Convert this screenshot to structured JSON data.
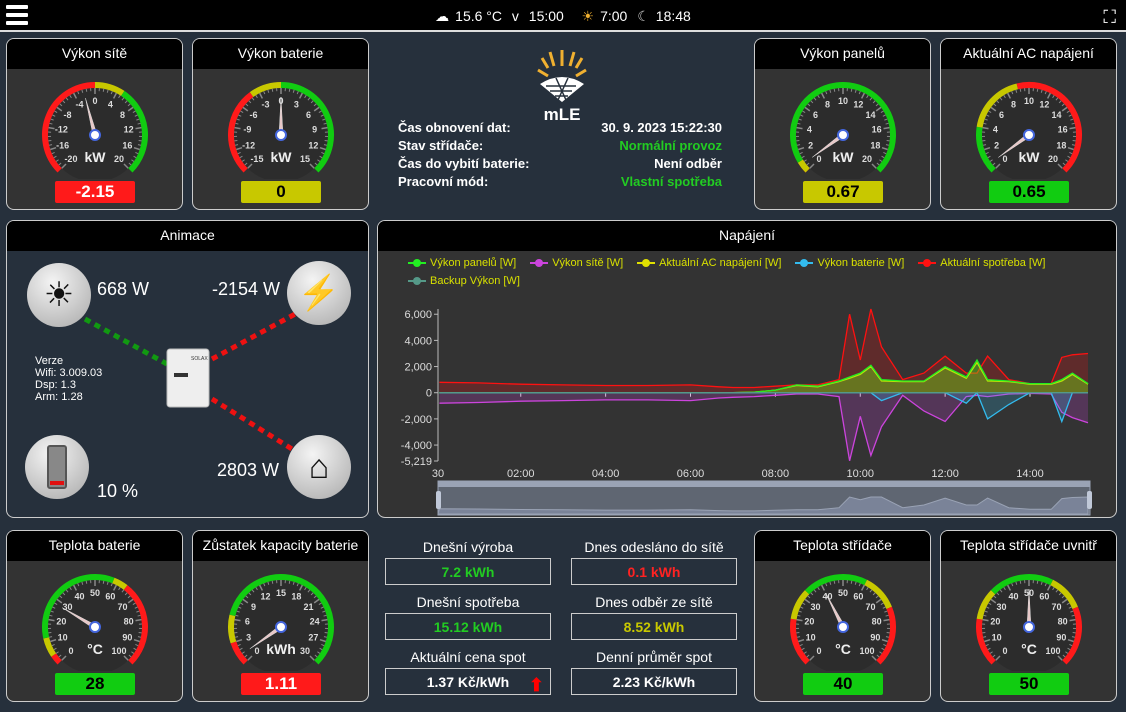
{
  "topbar": {
    "weather_icon": "cloud-rain-icon",
    "temp": "15.6 °C",
    "v": "v",
    "time": "15:00",
    "sunrise_icon": "sunrise-icon",
    "sunrise": "7:00",
    "sunset_icon": "moon-icon",
    "sunset": "18:48",
    "menu_icon": "hamburger-icon",
    "fullscreen_icon": "fullscreen-icon"
  },
  "gauges": [
    {
      "id": "vykon-site",
      "title": "Výkon sítě",
      "unit": "kW",
      "min": -20,
      "max": 20,
      "step": 4,
      "value": -2.15,
      "display": "-2.15",
      "box_color": "#ff1a1a",
      "text_color": "#ffffff",
      "bands": [
        [
          -20,
          0,
          "#ff1a1a"
        ],
        [
          0,
          5,
          "#c8c800"
        ],
        [
          5,
          20,
          "#11cc11"
        ]
      ]
    },
    {
      "id": "vykon-baterie",
      "title": "Výkon baterie",
      "unit": "kW",
      "min": -15,
      "max": 15,
      "step": 3,
      "value": 0,
      "display": "0",
      "box_color": "#c8c800",
      "text_color": "#000000",
      "bands": [
        [
          -15,
          -4,
          "#ff1a1a"
        ],
        [
          -4,
          0,
          "#c8c800"
        ],
        [
          0,
          15,
          "#11cc11"
        ]
      ]
    },
    {
      "id": "vykon-panelu",
      "title": "Výkon panelů",
      "unit": "kW",
      "min": 0,
      "max": 20,
      "step": 2,
      "value": 0.67,
      "display": "0.67",
      "box_color": "#c8c800",
      "text_color": "#000000",
      "bands": [
        [
          0,
          0.4,
          "#ff1a1a"
        ],
        [
          0,
          1,
          "#c8c800"
        ],
        [
          1,
          20,
          "#11cc11"
        ]
      ]
    },
    {
      "id": "ac-napajeni",
      "title": "Aktuální AC napájení",
      "unit": "kW",
      "min": 0,
      "max": 20,
      "step": 2,
      "value": 0.65,
      "display": "0.65",
      "box_color": "#11cc11",
      "text_color": "#000000",
      "bands": [
        [
          0,
          4,
          "#11cc11"
        ],
        [
          4,
          9,
          "#c8c800"
        ],
        [
          9,
          20,
          "#ff1a1a"
        ]
      ]
    },
    {
      "id": "teplota-baterie",
      "title": "Teplota baterie",
      "unit": "°C",
      "min": 0,
      "max": 100,
      "step": 10,
      "value": 28,
      "display": "28",
      "box_color": "#11cc11",
      "text_color": "#000000",
      "bands": [
        [
          0,
          4,
          "#ff1a1a"
        ],
        [
          4,
          12,
          "#c8c800"
        ],
        [
          12,
          58,
          "#11cc11"
        ],
        [
          58,
          64,
          "#c8c800"
        ],
        [
          64,
          100,
          "#ff1a1a"
        ]
      ]
    },
    {
      "id": "zustatek-kapacity",
      "title": "Zůstatek kapacity baterie",
      "unit": "kWh",
      "min": 0,
      "max": 30,
      "step": 3,
      "value": 1.11,
      "display": "1.11",
      "box_color": "#ff1a1a",
      "text_color": "#ffffff",
      "bands": [
        [
          0,
          3,
          "#ff1a1a"
        ],
        [
          3,
          6.5,
          "#c8c800"
        ],
        [
          6.5,
          30,
          "#11cc11"
        ]
      ]
    },
    {
      "id": "teplota-stridace",
      "title": "Teplota střídače",
      "unit": "°C",
      "min": 0,
      "max": 100,
      "step": 10,
      "value": 40,
      "display": "40",
      "box_color": "#11cc11",
      "text_color": "#000000",
      "bands": [
        [
          0,
          20,
          "#ff1a1a"
        ],
        [
          20,
          33,
          "#c8c800"
        ],
        [
          33,
          60,
          "#11cc11"
        ],
        [
          60,
          75,
          "#c8c800"
        ],
        [
          75,
          100,
          "#ff1a1a"
        ]
      ]
    },
    {
      "id": "teplota-stridace-uvnitr",
      "title": "Teplota střídače uvnitř",
      "unit": "°C",
      "min": 0,
      "max": 100,
      "step": 10,
      "value": 50,
      "display": "50",
      "box_color": "#11cc11",
      "text_color": "#000000",
      "bands": [
        [
          0,
          20,
          "#ff1a1a"
        ],
        [
          20,
          33,
          "#c8c800"
        ],
        [
          33,
          60,
          "#11cc11"
        ],
        [
          60,
          75,
          "#c8c800"
        ],
        [
          75,
          100,
          "#ff1a1a"
        ]
      ]
    }
  ],
  "info": {
    "logo_text": "mLE",
    "rows": [
      {
        "label": "Čas obnovení dat:",
        "value": "30. 9. 2023 15:22:30",
        "color": "#ffffff"
      },
      {
        "label": "Stav střídače:",
        "value": "Normální provoz",
        "color": "#22cc22"
      },
      {
        "label": "Čas do vybití baterie:",
        "value": "Není odběr",
        "color": "#ffffff"
      },
      {
        "label": "Pracovní mód:",
        "value": "Vlastní spotřeba",
        "color": "#22cc22"
      }
    ]
  },
  "animation": {
    "title": "Animace",
    "solar": "668 W",
    "grid": "-2154 W",
    "home": "2803 W",
    "battery": "10 %",
    "battery_level": 10,
    "version": {
      "title": "Verze",
      "wifi": "Wifi: 3.009.03",
      "dsp": "Dsp: 1.3",
      "arm": "Arm: 1.28"
    },
    "inverter_brand": "SOLAX"
  },
  "chart_panel": {
    "title": "Napájení"
  },
  "chart_data": {
    "type": "line",
    "title": "Napájení",
    "x_tick_labels": [
      "30",
      "02:00",
      "04:00",
      "06:00",
      "08:00",
      "10:00",
      "12:00",
      "14:00"
    ],
    "y_ticks": [
      6000,
      4000,
      2000,
      0,
      -2000,
      -4000,
      -5219
    ],
    "y_tick_labels": [
      "6,000",
      "4,000",
      "2,000",
      "0",
      "-2,000",
      "-4,000",
      "-5,219"
    ],
    "ylim": [
      -5219,
      6400
    ],
    "xlim": [
      "00:03",
      "15:22"
    ],
    "legend": "top",
    "grid": false,
    "x": [
      "00:05",
      "01:00",
      "02:00",
      "03:00",
      "04:00",
      "05:00",
      "06:00",
      "06:40",
      "07:00",
      "07:30",
      "08:00",
      "08:30",
      "09:00",
      "09:30",
      "09:45",
      "10:00",
      "10:15",
      "10:30",
      "11:00",
      "11:30",
      "12:00",
      "12:30",
      "12:45",
      "13:00",
      "13:30",
      "14:00",
      "14:30",
      "14:45",
      "15:00",
      "15:22"
    ],
    "series": [
      {
        "name": "Výkon panelů [W]",
        "color": "#22ee22",
        "values": [
          0,
          0,
          0,
          0,
          0,
          0,
          0,
          0,
          0,
          50,
          200,
          600,
          500,
          900,
          1200,
          1500,
          2100,
          1000,
          900,
          900,
          2000,
          1200,
          2500,
          1000,
          900,
          700,
          700,
          1000,
          1500,
          700
        ]
      },
      {
        "name": "Výkon sítě [W]",
        "color": "#cc44dd",
        "values": [
          -800,
          -750,
          -650,
          -600,
          -550,
          -550,
          -600,
          -400,
          -350,
          -300,
          -200,
          -100,
          -100,
          -300,
          -5200,
          -1800,
          -4800,
          -2600,
          -200,
          -1400,
          -2200,
          -300,
          -200,
          -300,
          -100,
          -50,
          -100,
          -1500,
          -1900,
          -2300
        ]
      },
      {
        "name": "Aktuální AC napájení [W]",
        "color": "#e0e000",
        "values": [
          0,
          0,
          0,
          0,
          0,
          0,
          0,
          0,
          0,
          50,
          200,
          550,
          450,
          850,
          1100,
          1400,
          2000,
          900,
          850,
          850,
          1900,
          1100,
          2300,
          900,
          850,
          650,
          650,
          900,
          1400,
          650
        ]
      },
      {
        "name": "Výkon baterie [W]",
        "color": "#33bbee",
        "values": [
          0,
          0,
          0,
          0,
          0,
          0,
          0,
          0,
          0,
          0,
          0,
          0,
          0,
          0,
          0,
          0,
          0,
          -600,
          0,
          0,
          0,
          -800,
          0,
          -2000,
          -900,
          0,
          0,
          -2200,
          0,
          0
        ]
      },
      {
        "name": "Aktuální spotřeba [W]",
        "color": "#ff1111",
        "values": [
          800,
          750,
          650,
          600,
          550,
          550,
          600,
          450,
          400,
          400,
          500,
          600,
          600,
          1000,
          6000,
          2500,
          6400,
          3500,
          1000,
          1500,
          2800,
          1500,
          1500,
          2800,
          1000,
          700,
          700,
          2700,
          2900,
          3000
        ]
      },
      {
        "name": "Backup Výkon [W]",
        "color": "#559988",
        "values": [
          0,
          0,
          0,
          0,
          0,
          0,
          0,
          0,
          0,
          0,
          0,
          0,
          0,
          0,
          0,
          0,
          0,
          0,
          0,
          0,
          0,
          0,
          0,
          0,
          0,
          0,
          0,
          0,
          0,
          0
        ]
      }
    ]
  },
  "stats": [
    {
      "label": "Dnešní výroba",
      "value": "7.2 kWh",
      "color": "#22cc22"
    },
    {
      "label": "Dnes odesláno do sítě",
      "value": "0.1 kWh",
      "color": "#ff2222"
    },
    {
      "label": "Dnešní spotřeba",
      "value": "15.12 kWh",
      "color": "#22cc22"
    },
    {
      "label": "Dnes odběr ze sítě",
      "value": "8.52 kWh",
      "color": "#c8c800"
    },
    {
      "label": "Aktuální cena spot",
      "value": "1.37 Kč/kWh",
      "color": "#ffffff",
      "trend_icon": "arrow-up-icon"
    },
    {
      "label": "Denní průměr spot",
      "value": "2.23 Kč/kWh",
      "color": "#ffffff"
    }
  ]
}
